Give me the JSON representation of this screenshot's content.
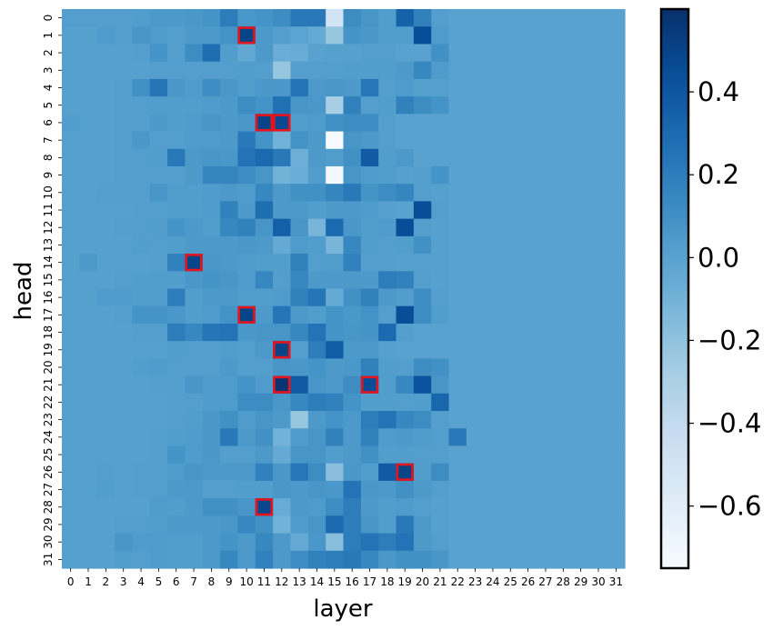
{
  "chart_data": {
    "type": "heatmap",
    "xlabel": "layer",
    "ylabel": "head",
    "x_categories": [
      "0",
      "1",
      "2",
      "3",
      "4",
      "5",
      "6",
      "7",
      "8",
      "9",
      "10",
      "11",
      "12",
      "13",
      "14",
      "15",
      "16",
      "17",
      "18",
      "19",
      "20",
      "21",
      "22",
      "23",
      "24",
      "25",
      "26",
      "27",
      "28",
      "29",
      "30",
      "31"
    ],
    "y_categories": [
      "0",
      "1",
      "2",
      "3",
      "4",
      "5",
      "6",
      "7",
      "8",
      "9",
      "10",
      "11",
      "12",
      "13",
      "14",
      "15",
      "16",
      "17",
      "18",
      "19",
      "20",
      "21",
      "22",
      "23",
      "24",
      "25",
      "26",
      "27",
      "28",
      "29",
      "30",
      "31"
    ],
    "colormap": "Blues",
    "vmin": -0.75,
    "vmax": 0.6,
    "colorbar_ticks": [
      0.4,
      0.2,
      0.0,
      -0.2,
      -0.4,
      -0.6
    ],
    "colorbar_tick_labels": [
      "0.4",
      "0.2",
      "0.0",
      "−0.2",
      "−0.4",
      "−0.6"
    ],
    "highlight_color": "#e8141c",
    "highlighted_cells": [
      {
        "head": 1,
        "layer": 10
      },
      {
        "head": 6,
        "layer": 11
      },
      {
        "head": 6,
        "layer": 12
      },
      {
        "head": 14,
        "layer": 7
      },
      {
        "head": 17,
        "layer": 10
      },
      {
        "head": 19,
        "layer": 12
      },
      {
        "head": 21,
        "layer": 12
      },
      {
        "head": 21,
        "layer": 17
      },
      {
        "head": 26,
        "layer": 19
      },
      {
        "head": 28,
        "layer": 11
      }
    ],
    "values": [
      [
        0.02,
        0.02,
        0.02,
        0.02,
        0.03,
        0.05,
        0.05,
        0.06,
        0.08,
        0.2,
        0.06,
        0.08,
        0.12,
        0.22,
        0.22,
        -0.5,
        0.12,
        0.07,
        0.03,
        0.34,
        0.18,
        0.02,
        0.0,
        0.0,
        0.0,
        0.0,
        0.0,
        0.0,
        0.0,
        0.0,
        0.0,
        0.0
      ],
      [
        0.01,
        0.01,
        0.04,
        0.02,
        0.07,
        0.04,
        0.02,
        0.05,
        0.05,
        0.09,
        0.5,
        0.05,
        0.02,
        -0.01,
        -0.05,
        -0.22,
        0.08,
        0.06,
        0.03,
        0.03,
        0.45,
        0.04,
        0.0,
        0.0,
        0.0,
        0.0,
        0.0,
        0.0,
        0.0,
        0.0,
        0.0,
        0.0
      ],
      [
        0.01,
        0.01,
        0.01,
        0.01,
        0.02,
        0.08,
        0.02,
        0.12,
        0.28,
        0.03,
        -0.04,
        0.05,
        -0.07,
        -0.06,
        0.0,
        0.01,
        0.01,
        0.02,
        0.02,
        0.0,
        0.0,
        0.1,
        0.0,
        0.0,
        0.0,
        0.0,
        0.0,
        0.0,
        0.0,
        0.0,
        0.0,
        0.0
      ],
      [
        0.01,
        0.01,
        0.01,
        0.01,
        0.01,
        0.02,
        0.02,
        0.02,
        0.02,
        0.02,
        0.03,
        0.02,
        -0.22,
        0.02,
        0.02,
        0.02,
        0.03,
        0.03,
        0.03,
        0.05,
        0.15,
        0.04,
        0.0,
        0.0,
        0.0,
        0.0,
        0.0,
        0.0,
        0.0,
        0.0,
        0.0,
        0.0
      ],
      [
        0.01,
        0.01,
        0.01,
        0.02,
        0.1,
        0.24,
        0.06,
        0.04,
        0.12,
        0.06,
        0.03,
        0.06,
        0.06,
        0.25,
        0.05,
        0.06,
        0.05,
        0.23,
        0.02,
        0.04,
        0.01,
        0.01,
        0.0,
        0.0,
        0.0,
        0.0,
        0.0,
        0.0,
        0.0,
        0.0,
        0.0,
        0.0
      ],
      [
        0.01,
        0.01,
        0.01,
        0.02,
        0.02,
        0.03,
        0.03,
        0.03,
        0.04,
        0.05,
        0.12,
        0.09,
        0.27,
        0.07,
        0.06,
        -0.28,
        0.18,
        0.02,
        0.03,
        0.18,
        0.12,
        0.08,
        0.0,
        0.0,
        0.0,
        0.0,
        0.0,
        0.0,
        0.0,
        0.0,
        0.0,
        0.0
      ],
      [
        0.03,
        0.01,
        0.01,
        0.02,
        0.02,
        0.05,
        0.03,
        0.04,
        0.07,
        0.05,
        0.06,
        0.5,
        0.47,
        0.03,
        0.04,
        0.1,
        0.12,
        0.12,
        0.02,
        0.0,
        0.0,
        0.0,
        0.0,
        0.0,
        0.0,
        0.0,
        0.0,
        0.0,
        0.0,
        0.0,
        0.0,
        0.0
      ],
      [
        0.01,
        0.01,
        0.01,
        0.02,
        0.06,
        0.02,
        0.02,
        0.04,
        0.04,
        0.05,
        0.22,
        0.08,
        -0.1,
        0.09,
        0.05,
        -0.75,
        0.07,
        0.05,
        0.02,
        0.0,
        0.0,
        0.0,
        0.0,
        0.0,
        0.0,
        0.0,
        0.0,
        0.0,
        0.0,
        0.0,
        0.0,
        0.0
      ],
      [
        0.01,
        0.01,
        0.01,
        0.02,
        0.02,
        0.03,
        0.22,
        0.05,
        0.07,
        0.06,
        0.25,
        0.3,
        0.22,
        -0.08,
        0.05,
        0.03,
        0.1,
        0.38,
        0.03,
        0.05,
        0.0,
        0.0,
        0.0,
        0.0,
        0.0,
        0.0,
        0.0,
        0.0,
        0.0,
        0.0,
        0.0,
        0.0
      ],
      [
        0.01,
        0.01,
        0.01,
        0.02,
        0.02,
        0.02,
        0.02,
        0.05,
        0.16,
        0.16,
        0.12,
        0.07,
        -0.1,
        -0.07,
        0.03,
        -0.72,
        0.07,
        0.04,
        0.03,
        0.01,
        0.02,
        0.08,
        0.0,
        0.0,
        0.0,
        0.0,
        0.0,
        0.0,
        0.0,
        0.0,
        0.0,
        0.0
      ],
      [
        0.01,
        0.01,
        0.02,
        0.02,
        0.02,
        0.07,
        0.03,
        0.03,
        0.04,
        0.05,
        0.04,
        0.15,
        0.05,
        0.1,
        0.1,
        0.16,
        0.22,
        0.09,
        0.12,
        0.16,
        0.02,
        0.01,
        0.0,
        0.0,
        0.0,
        0.0,
        0.0,
        0.0,
        0.0,
        0.0,
        0.0,
        0.0
      ],
      [
        0.01,
        0.01,
        0.01,
        0.01,
        0.02,
        0.02,
        0.03,
        0.03,
        0.04,
        0.18,
        0.05,
        0.28,
        0.05,
        0.05,
        0.03,
        0.05,
        0.05,
        0.04,
        0.01,
        0.0,
        0.45,
        0.02,
        0.0,
        0.0,
        0.0,
        0.0,
        0.0,
        0.0,
        0.0,
        0.0,
        0.0,
        0.0
      ],
      [
        0.01,
        0.01,
        0.01,
        0.02,
        0.02,
        0.03,
        0.08,
        0.05,
        0.03,
        0.15,
        0.18,
        0.07,
        0.35,
        0.07,
        -0.12,
        0.3,
        0.06,
        0.03,
        0.04,
        0.45,
        0.02,
        0.01,
        0.0,
        0.0,
        0.0,
        0.0,
        0.0,
        0.0,
        0.0,
        0.0,
        0.0,
        0.0
      ],
      [
        0.01,
        0.01,
        0.01,
        0.01,
        0.03,
        0.02,
        0.03,
        0.05,
        0.05,
        0.05,
        0.06,
        0.05,
        -0.05,
        0.04,
        0.03,
        -0.12,
        0.15,
        0.03,
        0.02,
        0.03,
        0.1,
        0.01,
        0.0,
        0.0,
        0.0,
        0.0,
        0.0,
        0.0,
        0.0,
        0.0,
        0.0,
        0.0
      ],
      [
        0.01,
        0.05,
        0.01,
        0.01,
        0.01,
        0.02,
        0.18,
        0.5,
        0.06,
        0.05,
        0.04,
        0.03,
        0.03,
        0.18,
        0.02,
        0.03,
        0.18,
        0.02,
        0.02,
        0.01,
        0.01,
        0.01,
        0.0,
        0.0,
        0.0,
        0.0,
        0.0,
        0.0,
        0.0,
        0.0,
        0.0,
        0.0
      ],
      [
        0.01,
        0.01,
        0.01,
        0.02,
        0.03,
        0.03,
        0.03,
        0.06,
        0.08,
        0.07,
        0.04,
        0.15,
        0.02,
        0.15,
        0.05,
        0.05,
        0.05,
        0.05,
        0.2,
        0.18,
        0.02,
        0.01,
        0.0,
        0.0,
        0.0,
        0.0,
        0.0,
        0.0,
        0.0,
        0.0,
        0.0,
        0.0
      ],
      [
        0.01,
        0.01,
        0.04,
        0.04,
        0.03,
        0.03,
        0.2,
        0.03,
        0.05,
        0.05,
        0.03,
        0.03,
        0.04,
        0.18,
        0.24,
        -0.05,
        0.1,
        0.18,
        0.05,
        0.03,
        0.12,
        0.02,
        0.0,
        0.0,
        0.0,
        0.0,
        0.0,
        0.0,
        0.0,
        0.0,
        0.0,
        0.0
      ],
      [
        0.01,
        0.01,
        0.01,
        0.02,
        0.08,
        0.08,
        0.06,
        0.03,
        0.04,
        0.09,
        0.5,
        0.05,
        0.24,
        0.05,
        0.03,
        0.08,
        0.06,
        0.09,
        0.02,
        0.45,
        0.12,
        0.03,
        0.0,
        0.0,
        0.0,
        0.0,
        0.0,
        0.0,
        0.0,
        0.0,
        0.0,
        0.0
      ],
      [
        0.01,
        0.01,
        0.01,
        0.01,
        0.02,
        0.02,
        0.2,
        0.15,
        0.24,
        0.25,
        0.06,
        0.07,
        0.07,
        0.15,
        0.25,
        0.08,
        0.07,
        0.08,
        0.3,
        0.02,
        0.0,
        0.0,
        0.0,
        0.0,
        0.0,
        0.0,
        0.0,
        0.0,
        0.0,
        0.0,
        0.0,
        0.0
      ],
      [
        0.01,
        0.01,
        0.01,
        0.01,
        0.01,
        0.01,
        0.03,
        0.02,
        0.02,
        0.03,
        0.02,
        0.05,
        0.5,
        0.02,
        0.2,
        0.37,
        0.05,
        0.05,
        0.01,
        0.0,
        0.0,
        0.0,
        0.0,
        0.0,
        0.0,
        0.0,
        0.0,
        0.0,
        0.0,
        0.0,
        0.0,
        0.0
      ],
      [
        0.01,
        0.01,
        0.01,
        0.01,
        0.03,
        0.04,
        0.02,
        0.02,
        0.02,
        0.05,
        0.02,
        0.02,
        0.07,
        0.06,
        0.08,
        0.05,
        0.06,
        0.18,
        0.03,
        0.02,
        0.12,
        0.1,
        0.0,
        0.0,
        0.0,
        0.0,
        0.0,
        0.0,
        0.0,
        0.0,
        0.0,
        0.0
      ],
      [
        0.01,
        0.01,
        0.01,
        0.01,
        0.01,
        0.02,
        0.02,
        0.07,
        0.04,
        0.04,
        0.08,
        0.04,
        0.58,
        0.38,
        0.07,
        0.05,
        0.12,
        0.45,
        0.03,
        0.15,
        0.42,
        0.07,
        0.0,
        0.0,
        0.0,
        0.0,
        0.0,
        0.0,
        0.0,
        0.0,
        0.0,
        0.0
      ],
      [
        0.01,
        0.01,
        0.01,
        0.01,
        0.01,
        0.01,
        0.02,
        0.02,
        0.04,
        0.04,
        0.12,
        0.12,
        0.06,
        0.15,
        0.2,
        0.18,
        0.08,
        0.03,
        0.03,
        0.02,
        0.03,
        0.32,
        0.0,
        0.0,
        0.0,
        0.0,
        0.0,
        0.0,
        0.0,
        0.0,
        0.0,
        0.0
      ],
      [
        0.01,
        0.01,
        0.01,
        0.01,
        0.01,
        0.01,
        0.02,
        0.03,
        0.06,
        0.1,
        0.04,
        0.07,
        0.05,
        -0.22,
        0.05,
        0.08,
        0.05,
        0.2,
        0.25,
        0.15,
        0.12,
        0.02,
        0.0,
        0.0,
        0.0,
        0.0,
        0.0,
        0.0,
        0.0,
        0.0,
        0.0,
        0.0
      ],
      [
        0.01,
        0.01,
        0.01,
        0.01,
        0.01,
        0.02,
        0.03,
        0.04,
        0.06,
        0.22,
        0.05,
        0.1,
        -0.1,
        0.04,
        0.07,
        0.18,
        0.05,
        0.18,
        0.04,
        0.05,
        0.04,
        0.02,
        0.22,
        0.0,
        0.0,
        0.0,
        0.0,
        0.0,
        0.0,
        0.0,
        0.0,
        0.0
      ],
      [
        0.01,
        0.01,
        0.01,
        0.01,
        0.01,
        0.02,
        0.08,
        0.04,
        0.06,
        0.02,
        0.02,
        0.05,
        -0.05,
        0.07,
        0.07,
        0.03,
        0.05,
        0.1,
        0.03,
        0.03,
        0.02,
        0.02,
        0.0,
        0.0,
        0.0,
        0.0,
        0.0,
        0.0,
        0.0,
        0.0,
        0.0,
        0.0
      ],
      [
        0.01,
        0.01,
        0.02,
        0.01,
        0.02,
        0.02,
        0.04,
        0.07,
        0.05,
        0.05,
        0.05,
        0.18,
        0.06,
        0.23,
        0.12,
        -0.17,
        0.06,
        0.03,
        0.38,
        0.5,
        0.03,
        0.12,
        0.0,
        0.0,
        0.0,
        0.0,
        0.0,
        0.0,
        0.0,
        0.0,
        0.0,
        0.0
      ],
      [
        0.01,
        0.01,
        0.03,
        0.01,
        0.02,
        0.02,
        0.05,
        0.05,
        0.02,
        0.02,
        0.03,
        0.03,
        0.06,
        0.05,
        0.07,
        0.06,
        0.25,
        0.06,
        0.05,
        0.1,
        0.05,
        0.02,
        0.0,
        0.0,
        0.0,
        0.0,
        0.0,
        0.0,
        0.0,
        0.0,
        0.0,
        0.0
      ],
      [
        0.01,
        0.01,
        0.01,
        0.01,
        0.01,
        0.04,
        0.03,
        0.05,
        0.1,
        0.1,
        0.07,
        0.48,
        -0.06,
        0.05,
        0.04,
        0.12,
        0.2,
        0.05,
        0.03,
        0.04,
        0.02,
        0.01,
        0.0,
        0.0,
        0.0,
        0.0,
        0.0,
        0.0,
        0.0,
        0.0,
        0.0,
        0.0
      ],
      [
        0.01,
        0.01,
        0.01,
        0.02,
        0.02,
        0.03,
        0.05,
        0.05,
        0.05,
        0.06,
        0.15,
        0.1,
        -0.1,
        0.04,
        0.07,
        0.3,
        0.2,
        0.07,
        0.03,
        0.22,
        0.05,
        0.01,
        0.0,
        0.0,
        0.0,
        0.0,
        0.0,
        0.0,
        0.0,
        0.0,
        0.0,
        0.0
      ],
      [
        0.01,
        0.01,
        0.01,
        0.07,
        0.04,
        0.04,
        0.03,
        0.03,
        0.05,
        0.08,
        0.05,
        0.15,
        0.05,
        -0.05,
        0.06,
        -0.17,
        0.2,
        0.25,
        0.2,
        0.25,
        0.05,
        0.02,
        0.0,
        0.0,
        0.0,
        0.0,
        0.0,
        0.0,
        0.0,
        0.0,
        0.0,
        0.0
      ],
      [
        0.01,
        0.01,
        0.01,
        0.03,
        0.02,
        0.04,
        0.03,
        0.03,
        0.05,
        0.15,
        0.05,
        0.18,
        0.05,
        0.12,
        0.18,
        0.2,
        0.22,
        0.15,
        0.06,
        0.1,
        0.1,
        0.07,
        0.0,
        0.0,
        0.0,
        0.0,
        0.0,
        0.0,
        0.0,
        0.0,
        0.0,
        0.0
      ]
    ]
  }
}
